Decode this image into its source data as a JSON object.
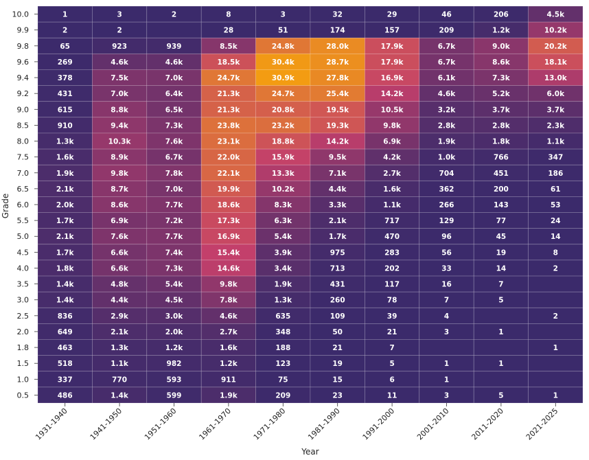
{
  "chart_data": {
    "type": "heatmap",
    "xlabel": "Year",
    "ylabel": "Grade",
    "x_categories": [
      "1931-1940",
      "1941-1950",
      "1951-1960",
      "1961-1970",
      "1971-1980",
      "1981-1990",
      "1991-2000",
      "2001-2010",
      "2011-2020",
      "2021-2025"
    ],
    "y_categories": [
      "10.0",
      "9.9",
      "9.8",
      "9.6",
      "9.4",
      "9.2",
      "9.0",
      "8.5",
      "8.0",
      "7.5",
      "7.0",
      "6.5",
      "6.0",
      "5.5",
      "5.0",
      "4.5",
      "4.0",
      "3.5",
      "3.0",
      "2.5",
      "2.0",
      "1.8",
      "1.5",
      "1.0",
      "0.5"
    ],
    "values": [
      [
        1,
        3,
        2,
        8,
        3,
        32,
        29,
        46,
        206,
        4500
      ],
      [
        2,
        2,
        null,
        28,
        51,
        174,
        157,
        209,
        1200,
        10200
      ],
      [
        65,
        923,
        939,
        8500,
        24800,
        28000,
        17900,
        6700,
        9000,
        20200
      ],
      [
        269,
        4600,
        4600,
        18500,
        30400,
        28700,
        17900,
        6700,
        8600,
        18100
      ],
      [
        378,
        7500,
        7000,
        24700,
        30900,
        27800,
        16900,
        6100,
        7300,
        13000
      ],
      [
        431,
        7000,
        6400,
        21300,
        24700,
        25400,
        14200,
        4600,
        5200,
        6000
      ],
      [
        615,
        8800,
        6500,
        21300,
        20800,
        19500,
        10500,
        3200,
        3700,
        3700
      ],
      [
        910,
        9400,
        7300,
        23800,
        23200,
        19300,
        9800,
        2800,
        2800,
        2300
      ],
      [
        1300,
        10300,
        7600,
        23100,
        18800,
        14200,
        6900,
        1900,
        1800,
        1100
      ],
      [
        1600,
        8900,
        6700,
        22000,
        15900,
        9500,
        4200,
        1000,
        766,
        347
      ],
      [
        1900,
        9800,
        7800,
        22100,
        13300,
        7100,
        2700,
        704,
        451,
        186
      ],
      [
        2100,
        8700,
        7000,
        19900,
        10200,
        4400,
        1600,
        362,
        200,
        61
      ],
      [
        2000,
        8600,
        7700,
        18600,
        8300,
        3300,
        1100,
        266,
        143,
        53
      ],
      [
        1700,
        6900,
        7200,
        17300,
        6300,
        2100,
        717,
        129,
        77,
        24
      ],
      [
        2100,
        7600,
        7700,
        16900,
        5400,
        1700,
        470,
        96,
        45,
        14
      ],
      [
        1700,
        6600,
        7400,
        15400,
        3900,
        975,
        283,
        56,
        19,
        8
      ],
      [
        1800,
        6600,
        7300,
        14600,
        3400,
        713,
        202,
        33,
        14,
        2
      ],
      [
        1400,
        4800,
        5400,
        9800,
        1900,
        431,
        117,
        16,
        7,
        null
      ],
      [
        1400,
        4400,
        4500,
        7800,
        1300,
        260,
        78,
        7,
        5,
        null
      ],
      [
        836,
        2900,
        3000,
        4600,
        635,
        109,
        39,
        4,
        null,
        2
      ],
      [
        649,
        2100,
        2000,
        2700,
        348,
        50,
        21,
        3,
        1,
        null
      ],
      [
        463,
        1300,
        1200,
        1600,
        188,
        21,
        7,
        null,
        null,
        1
      ],
      [
        518,
        1100,
        982,
        1200,
        123,
        19,
        5,
        1,
        1,
        null
      ],
      [
        337,
        770,
        593,
        911,
        75,
        15,
        6,
        1,
        null,
        null
      ],
      [
        486,
        1400,
        599,
        1900,
        209,
        23,
        11,
        3,
        5,
        1
      ]
    ],
    "labels": [
      [
        "1",
        "3",
        "2",
        "8",
        "3",
        "32",
        "29",
        "46",
        "206",
        "4.5k"
      ],
      [
        "2",
        "2",
        "",
        "28",
        "51",
        "174",
        "157",
        "209",
        "1.2k",
        "10.2k"
      ],
      [
        "65",
        "923",
        "939",
        "8.5k",
        "24.8k",
        "28.0k",
        "17.9k",
        "6.7k",
        "9.0k",
        "20.2k"
      ],
      [
        "269",
        "4.6k",
        "4.6k",
        "18.5k",
        "30.4k",
        "28.7k",
        "17.9k",
        "6.7k",
        "8.6k",
        "18.1k"
      ],
      [
        "378",
        "7.5k",
        "7.0k",
        "24.7k",
        "30.9k",
        "27.8k",
        "16.9k",
        "6.1k",
        "7.3k",
        "13.0k"
      ],
      [
        "431",
        "7.0k",
        "6.4k",
        "21.3k",
        "24.7k",
        "25.4k",
        "14.2k",
        "4.6k",
        "5.2k",
        "6.0k"
      ],
      [
        "615",
        "8.8k",
        "6.5k",
        "21.3k",
        "20.8k",
        "19.5k",
        "10.5k",
        "3.2k",
        "3.7k",
        "3.7k"
      ],
      [
        "910",
        "9.4k",
        "7.3k",
        "23.8k",
        "23.2k",
        "19.3k",
        "9.8k",
        "2.8k",
        "2.8k",
        "2.3k"
      ],
      [
        "1.3k",
        "10.3k",
        "7.6k",
        "23.1k",
        "18.8k",
        "14.2k",
        "6.9k",
        "1.9k",
        "1.8k",
        "1.1k"
      ],
      [
        "1.6k",
        "8.9k",
        "6.7k",
        "22.0k",
        "15.9k",
        "9.5k",
        "4.2k",
        "1.0k",
        "766",
        "347"
      ],
      [
        "1.9k",
        "9.8k",
        "7.8k",
        "22.1k",
        "13.3k",
        "7.1k",
        "2.7k",
        "704",
        "451",
        "186"
      ],
      [
        "2.1k",
        "8.7k",
        "7.0k",
        "19.9k",
        "10.2k",
        "4.4k",
        "1.6k",
        "362",
        "200",
        "61"
      ],
      [
        "2.0k",
        "8.6k",
        "7.7k",
        "18.6k",
        "8.3k",
        "3.3k",
        "1.1k",
        "266",
        "143",
        "53"
      ],
      [
        "1.7k",
        "6.9k",
        "7.2k",
        "17.3k",
        "6.3k",
        "2.1k",
        "717",
        "129",
        "77",
        "24"
      ],
      [
        "2.1k",
        "7.6k",
        "7.7k",
        "16.9k",
        "5.4k",
        "1.7k",
        "470",
        "96",
        "45",
        "14"
      ],
      [
        "1.7k",
        "6.6k",
        "7.4k",
        "15.4k",
        "3.9k",
        "975",
        "283",
        "56",
        "19",
        "8"
      ],
      [
        "1.8k",
        "6.6k",
        "7.3k",
        "14.6k",
        "3.4k",
        "713",
        "202",
        "33",
        "14",
        "2"
      ],
      [
        "1.4k",
        "4.8k",
        "5.4k",
        "9.8k",
        "1.9k",
        "431",
        "117",
        "16",
        "7",
        ""
      ],
      [
        "1.4k",
        "4.4k",
        "4.5k",
        "7.8k",
        "1.3k",
        "260",
        "78",
        "7",
        "5",
        ""
      ],
      [
        "836",
        "2.9k",
        "3.0k",
        "4.6k",
        "635",
        "109",
        "39",
        "4",
        "",
        "2"
      ],
      [
        "649",
        "2.1k",
        "2.0k",
        "2.7k",
        "348",
        "50",
        "21",
        "3",
        "1",
        ""
      ],
      [
        "463",
        "1.3k",
        "1.2k",
        "1.6k",
        "188",
        "21",
        "7",
        "",
        "",
        "1"
      ],
      [
        "518",
        "1.1k",
        "982",
        "1.2k",
        "123",
        "19",
        "5",
        "1",
        "1",
        ""
      ],
      [
        "337",
        "770",
        "593",
        "911",
        "75",
        "15",
        "6",
        "1",
        "",
        ""
      ],
      [
        "486",
        "1.4k",
        "599",
        "1.9k",
        "209",
        "23",
        "11",
        "3",
        "5",
        "1"
      ]
    ],
    "color_scale": {
      "low": "#3b2a6b",
      "mid": "#c33f6b",
      "high": "#f39c12",
      "max": 30900
    },
    "grid": true,
    "legend": "none"
  }
}
